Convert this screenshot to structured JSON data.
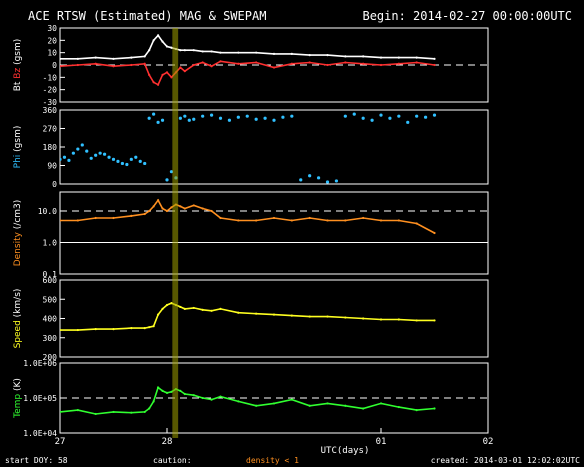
{
  "chart_data": {
    "type": "scatter",
    "title": "ACE RTSW (Estimated) MAG & SWEPAM",
    "begin": "Begin: 2014-02-27 00:00:00UTC",
    "xlabel": "UTC(days)",
    "x_ticks": [
      "27",
      "28",
      "01",
      "02"
    ],
    "x_range_hours": [
      0,
      96
    ],
    "highlight_band_hours": [
      25.2,
      26.5
    ],
    "footer": {
      "start_doy": "start DOY:  58",
      "caution": "caution:",
      "density_note": "density < 1",
      "created": "created: 2014-03-01 12:02:02UTC"
    },
    "panels": [
      {
        "id": "bt-bz",
        "ylabel_parts": [
          {
            "text": "Bt",
            "color": "#ffffff"
          },
          {
            "text": " ",
            "color": "#ffffff"
          },
          {
            "text": "Bz",
            "color": "#ff3030"
          },
          {
            "text": " (gsm)",
            "color": "#ffffff"
          }
        ],
        "ylim": [
          -30,
          30
        ],
        "scale": "linear",
        "ticks": [
          "30",
          "20",
          "10",
          "0",
          "-10",
          "-20",
          "-30"
        ],
        "tick_values": [
          30,
          20,
          10,
          0,
          -10,
          -20,
          -30
        ],
        "ref_line": 0,
        "series": [
          {
            "name": "Bt",
            "color": "#ffffff",
            "style": "line",
            "x": [
              0,
              4,
              8,
              12,
              16,
              19,
              20,
              21,
              22,
              23,
              24,
              25,
              26,
              27,
              28,
              30,
              32,
              34,
              36,
              40,
              44,
              48,
              52,
              56,
              60,
              64,
              68,
              72,
              76,
              80,
              84
            ],
            "y": [
              5,
              5,
              6,
              5,
              6,
              7,
              12,
              20,
              24,
              19,
              15,
              14,
              13,
              12,
              12,
              12,
              11,
              11,
              10,
              10,
              10,
              9,
              9,
              8,
              8,
              7,
              7,
              6,
              6,
              6,
              5
            ]
          },
          {
            "name": "Bz",
            "color": "#ff3030",
            "style": "line",
            "x": [
              0,
              4,
              8,
              12,
              16,
              19,
              20,
              21,
              22,
              23,
              24,
              25,
              26,
              27,
              28,
              30,
              32,
              34,
              36,
              40,
              44,
              48,
              52,
              56,
              60,
              64,
              68,
              72,
              76,
              80,
              84
            ],
            "y": [
              -1,
              0,
              1,
              -1,
              0,
              1,
              -8,
              -14,
              -16,
              -8,
              -6,
              -10,
              -6,
              -2,
              -5,
              0,
              2,
              -1,
              3,
              1,
              2,
              -2,
              1,
              2,
              0,
              2,
              1,
              0,
              1,
              2,
              0
            ]
          }
        ]
      },
      {
        "id": "phi",
        "ylabel_parts": [
          {
            "text": "Phi",
            "color": "#30c0ff"
          },
          {
            "text": " (gsm)",
            "color": "#ffffff"
          }
        ],
        "ylim": [
          0,
          360
        ],
        "scale": "linear",
        "ticks": [
          "360",
          "270",
          "180",
          "90",
          "0"
        ],
        "tick_values": [
          360,
          270,
          180,
          90,
          0
        ],
        "series": [
          {
            "name": "Phi",
            "color": "#30c0ff",
            "style": "points",
            "x": [
              0,
              1,
              2,
              3,
              4,
              5,
              6,
              7,
              8,
              9,
              10,
              11,
              12,
              13,
              14,
              15,
              16,
              17,
              18,
              19,
              20,
              21,
              22,
              23,
              24,
              25,
              26,
              27,
              28,
              29,
              30,
              32,
              34,
              36,
              38,
              40,
              42,
              44,
              46,
              48,
              50,
              52,
              54,
              56,
              58,
              60,
              62,
              64,
              66,
              68,
              70,
              72,
              74,
              76,
              78,
              80,
              82,
              84
            ],
            "y": [
              120,
              130,
              115,
              150,
              170,
              190,
              160,
              125,
              140,
              150,
              145,
              130,
              120,
              110,
              100,
              95,
              120,
              130,
              110,
              100,
              320,
              340,
              300,
              310,
              20,
              60,
              30,
              320,
              330,
              310,
              315,
              330,
              335,
              320,
              310,
              325,
              330,
              315,
              320,
              310,
              325,
              330,
              20,
              40,
              30,
              10,
              15,
              330,
              340,
              320,
              310,
              335,
              320,
              330,
              300,
              330,
              325,
              335
            ]
          }
        ]
      },
      {
        "id": "density",
        "ylabel_parts": [
          {
            "text": "Density",
            "color": "#ff9020"
          },
          {
            "text": " (/cm3)",
            "color": "#ffffff"
          }
        ],
        "ylim": [
          0.1,
          40
        ],
        "scale": "log",
        "ticks": [
          "10.0",
          "1.0",
          "0.1"
        ],
        "tick_values": [
          10,
          1,
          0.1
        ],
        "ref_line": 10,
        "ref_line_solid": 1,
        "series": [
          {
            "name": "Density",
            "color": "#ff9020",
            "style": "line",
            "x": [
              0,
              4,
              8,
              12,
              16,
              19,
              20,
              21,
              22,
              23,
              24,
              25,
              26,
              27,
              28,
              30,
              32,
              34,
              36,
              40,
              44,
              48,
              52,
              56,
              60,
              64,
              68,
              72,
              76,
              80,
              84
            ],
            "y": [
              5,
              5,
              6,
              6,
              7,
              8,
              10,
              14,
              22,
              12,
              10,
              13,
              16,
              14,
              12,
              15,
              12,
              10,
              6,
              5,
              5,
              6,
              5,
              6,
              5,
              5,
              6,
              5,
              5,
              4,
              2
            ]
          }
        ]
      },
      {
        "id": "speed",
        "ylabel_parts": [
          {
            "text": "Speed",
            "color": "#ffff20"
          },
          {
            "text": " (km/s)",
            "color": "#ffffff"
          }
        ],
        "ylim": [
          200,
          600
        ],
        "scale": "linear",
        "ticks": [
          "600",
          "500",
          "400",
          "300",
          "200"
        ],
        "tick_values": [
          600,
          500,
          400,
          300,
          200
        ],
        "series": [
          {
            "name": "Speed",
            "color": "#ffff20",
            "style": "line",
            "x": [
              0,
              4,
              8,
              12,
              16,
              19,
              20,
              21,
              22,
              23,
              24,
              25,
              26,
              27,
              28,
              30,
              32,
              34,
              36,
              40,
              44,
              48,
              52,
              56,
              60,
              64,
              68,
              72,
              76,
              80,
              84
            ],
            "y": [
              340,
              340,
              345,
              345,
              350,
              350,
              355,
              360,
              420,
              450,
              470,
              480,
              470,
              460,
              450,
              455,
              445,
              440,
              450,
              430,
              425,
              420,
              415,
              410,
              410,
              405,
              400,
              395,
              395,
              390,
              390
            ]
          }
        ]
      },
      {
        "id": "temp",
        "ylabel_parts": [
          {
            "text": "Temp",
            "color": "#30ff30"
          },
          {
            "text": " (K)",
            "color": "#ffffff"
          }
        ],
        "ylim": [
          10000,
          1000000
        ],
        "scale": "log",
        "ticks": [
          "1.0E+06",
          "1.0E+05",
          "1.0E+04"
        ],
        "tick_values": [
          1000000,
          100000,
          10000
        ],
        "ref_line": 100000,
        "series": [
          {
            "name": "Temp",
            "color": "#30ff30",
            "style": "line",
            "x": [
              0,
              4,
              8,
              12,
              16,
              19,
              20,
              21,
              22,
              23,
              24,
              25,
              26,
              27,
              28,
              30,
              32,
              34,
              36,
              40,
              44,
              48,
              52,
              56,
              60,
              64,
              68,
              72,
              76,
              80,
              84
            ],
            "y": [
              40000,
              45000,
              35000,
              40000,
              38000,
              40000,
              50000,
              80000,
              200000,
              160000,
              140000,
              150000,
              180000,
              160000,
              130000,
              120000,
              100000,
              90000,
              110000,
              80000,
              60000,
              70000,
              90000,
              60000,
              70000,
              60000,
              50000,
              70000,
              55000,
              45000,
              50000
            ]
          }
        ]
      }
    ]
  }
}
